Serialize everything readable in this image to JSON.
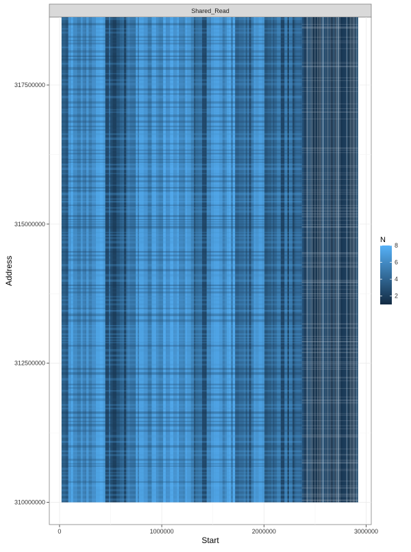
{
  "chart_data": {
    "type": "heatmap",
    "facet_label": "Shared_Read",
    "xlabel": "Start",
    "ylabel": "Address",
    "xlim": [
      -100000,
      3050000
    ],
    "ylim": [
      309600000,
      318720000
    ],
    "x_ticks": [
      0,
      1000000,
      2000000,
      3000000
    ],
    "x_tick_labels": [
      "0",
      "1000000",
      "2000000",
      "3000000"
    ],
    "y_ticks": [
      310000000,
      312500000,
      315000000,
      317500000
    ],
    "y_tick_labels": [
      "310000000",
      "312500000",
      "315000000",
      "317500000"
    ],
    "data_extent": {
      "x": [
        20000,
        2920000
      ],
      "y": [
        310000000,
        318950000
      ]
    },
    "column_regions": [
      {
        "x_start": 20000,
        "x_end": 2370000,
        "intensity": "mixed dark/light blue bands, mostly N 4–8"
      },
      {
        "x_start": 2370000,
        "x_end": 2920000,
        "intensity": "sparse, mostly N 1–3"
      }
    ],
    "legend": {
      "title": "N",
      "position": "right",
      "min": 1,
      "max": 8,
      "ticks": [
        2,
        4,
        6,
        8
      ],
      "tick_labels": [
        "2",
        "4",
        "6",
        "8"
      ],
      "low_color": "#132B43",
      "high_color": "#56B1F7"
    },
    "grid": true,
    "theme": "bw"
  }
}
